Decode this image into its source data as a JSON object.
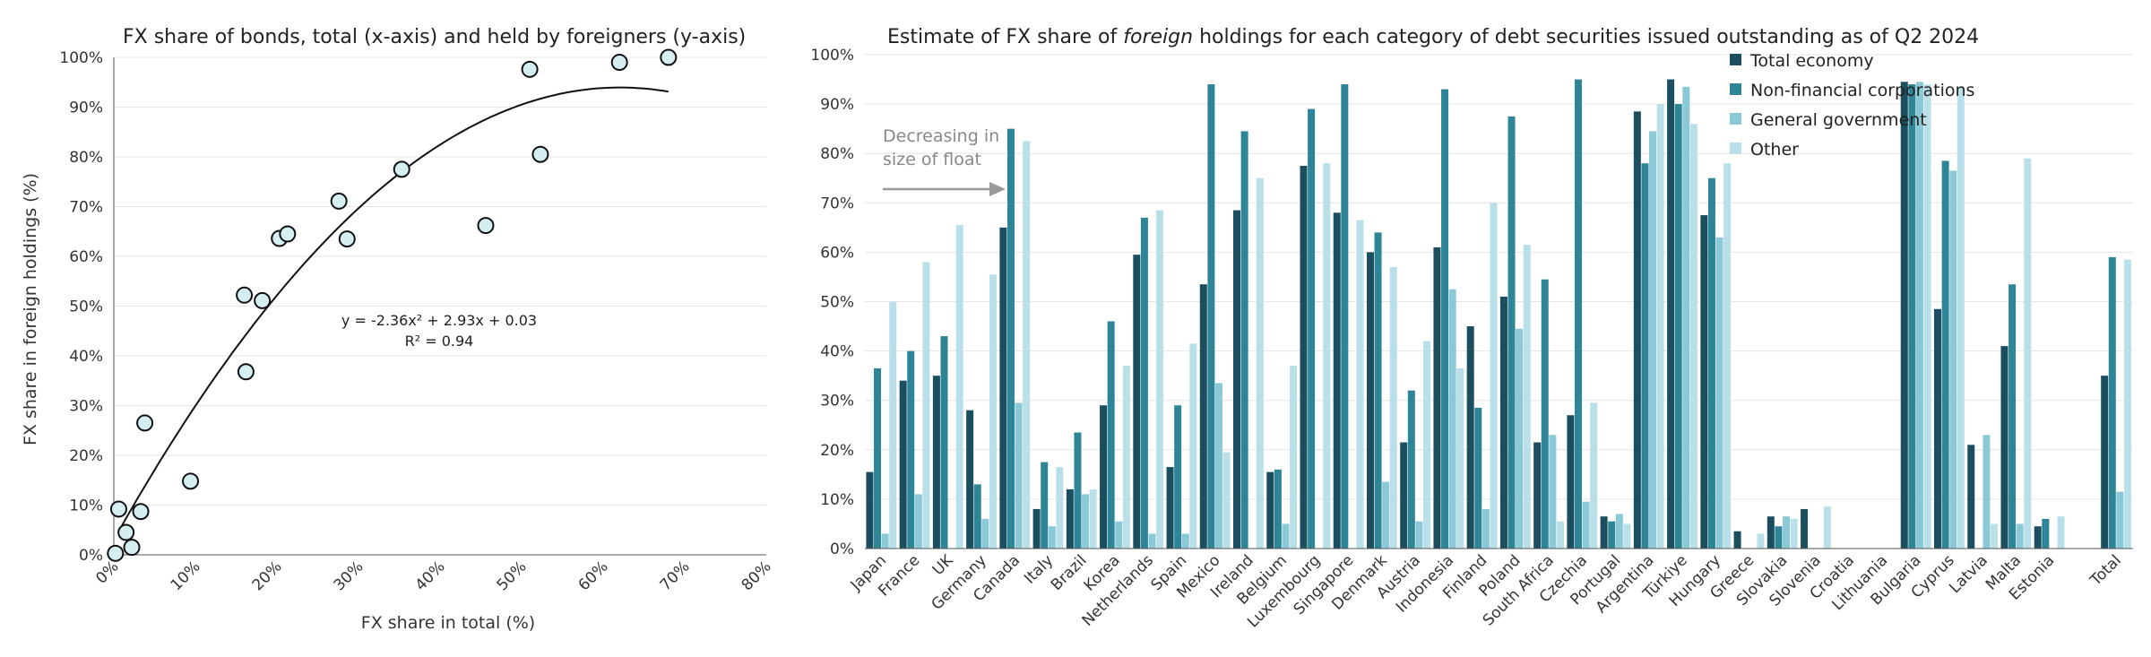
{
  "chart_data": [
    {
      "type": "scatter",
      "title": "FX share of bonds, total (x-axis) and held by foreigners (y-axis)",
      "xlabel": "FX share in total (%)",
      "ylabel": "FX share in foreign holdings (%)",
      "xlim": [
        0,
        80
      ],
      "ylim": [
        0,
        100
      ],
      "x_ticks": [
        "0%",
        "10%",
        "20%",
        "30%",
        "40%",
        "50%",
        "60%",
        "70%",
        "80%"
      ],
      "y_ticks": [
        "0%",
        "10%",
        "20%",
        "30%",
        "40%",
        "50%",
        "60%",
        "70%",
        "80%",
        "90%",
        "100%"
      ],
      "points": [
        {
          "x": 0.2,
          "y": 0.3
        },
        {
          "x": 0.6,
          "y": 9.2
        },
        {
          "x": 1.5,
          "y": 4.5
        },
        {
          "x": 2.2,
          "y": 1.5
        },
        {
          "x": 3.3,
          "y": 8.7
        },
        {
          "x": 3.8,
          "y": 26.5
        },
        {
          "x": 9.4,
          "y": 14.8
        },
        {
          "x": 16.0,
          "y": 52.2
        },
        {
          "x": 16.2,
          "y": 36.8
        },
        {
          "x": 18.2,
          "y": 51.1
        },
        {
          "x": 20.3,
          "y": 63.6
        },
        {
          "x": 21.3,
          "y": 64.5
        },
        {
          "x": 27.6,
          "y": 71.1
        },
        {
          "x": 28.6,
          "y": 63.5
        },
        {
          "x": 35.3,
          "y": 77.5
        },
        {
          "x": 45.6,
          "y": 66.2
        },
        {
          "x": 51.0,
          "y": 97.6
        },
        {
          "x": 52.3,
          "y": 80.5
        },
        {
          "x": 62.0,
          "y": 99.0
        },
        {
          "x": 68.0,
          "y": 100.0
        }
      ],
      "trendline": {
        "a": -2.36,
        "b": 2.93,
        "c": 0.03,
        "x_range": [
          1,
          68
        ]
      },
      "equation": "y = -2.36x² + 2.93x + 0.03",
      "r_squared": "R² = 0.94"
    },
    {
      "type": "bar",
      "title_parts": {
        "before": "Estimate of FX share of ",
        "emphasis": "foreign",
        "after": " holdings for each category of debt securities issued outstanding as of Q2 2024"
      },
      "ylim": [
        0,
        100
      ],
      "y_ticks": [
        "0%",
        "10%",
        "20%",
        "30%",
        "40%",
        "50%",
        "60%",
        "70%",
        "80%",
        "90%",
        "100%"
      ],
      "categories": [
        "Japan",
        "France",
        "UK",
        "Germany",
        "Canada",
        "Italy",
        "Brazil",
        "Korea",
        "Netherlands",
        "Spain",
        "Mexico",
        "Ireland",
        "Belgium",
        "Luxembourg",
        "Singapore",
        "Denmark",
        "Austria",
        "Indonesia",
        "Finland",
        "Poland",
        "South Africa",
        "Czechia",
        "Portugal",
        "Argentina",
        "Türkiye",
        "Hungary",
        "Greece",
        "Slovakia",
        "Slovenia",
        "Croatia",
        "Lithuania",
        "Bulgaria",
        "Cyprus",
        "Latvia",
        "Malta",
        "Estonia",
        "",
        "Total"
      ],
      "series": [
        {
          "name": "Total economy",
          "color": "#1b4f5f",
          "values": [
            15.5,
            34,
            35,
            28,
            65,
            8,
            12,
            29,
            59.5,
            16.5,
            53.5,
            68.5,
            15.5,
            77.5,
            68,
            60,
            21.5,
            61,
            45,
            51,
            21.5,
            27,
            6.5,
            88.5,
            95,
            67.5,
            3.5,
            6.5,
            8,
            0,
            0,
            94.5,
            48.5,
            21,
            41,
            4.5,
            0,
            35
          ]
        },
        {
          "name": "Non-financial corporations",
          "color": "#2e8597",
          "values": [
            36.5,
            40,
            43,
            13,
            85,
            17.5,
            23.5,
            46,
            67,
            29,
            94,
            84.5,
            16,
            89,
            94,
            64,
            32,
            93,
            28.5,
            87.5,
            54.5,
            95,
            5.5,
            78,
            90,
            75,
            0,
            4.5,
            0,
            0,
            0,
            94,
            78.5,
            0,
            53.5,
            6,
            0,
            59
          ]
        },
        {
          "name": "General government",
          "color": "#8bc9d6",
          "values": [
            3,
            11,
            0,
            6,
            29.5,
            4.5,
            11,
            5.5,
            3,
            3,
            33.5,
            0,
            5,
            0,
            0,
            13.5,
            5.5,
            52.5,
            8,
            44.5,
            23,
            9.5,
            7,
            84.5,
            93.5,
            63,
            0,
            6.5,
            0,
            0,
            0,
            94.5,
            76.5,
            23,
            5,
            0,
            0,
            11.5
          ]
        },
        {
          "name": "Other",
          "color": "#b9e0e8",
          "values": [
            50,
            58,
            65.5,
            55.5,
            82.5,
            16.5,
            12,
            37,
            68.5,
            41.5,
            19.5,
            75,
            37,
            78,
            66.5,
            57,
            42,
            36.5,
            70,
            61.5,
            5.5,
            29.5,
            5,
            90,
            86,
            78,
            3,
            6,
            8.5,
            0,
            0,
            94,
            93.5,
            5,
            79,
            6.5,
            0,
            58.5
          ]
        }
      ],
      "annotation_line1": "Decreasing in",
      "annotation_line2": "size of float"
    }
  ]
}
